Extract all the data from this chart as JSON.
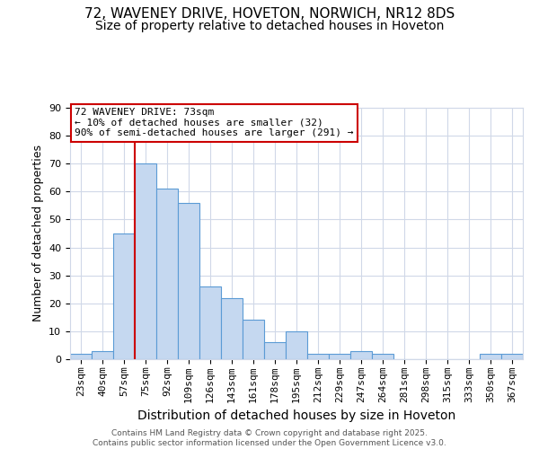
{
  "title1": "72, WAVENEY DRIVE, HOVETON, NORWICH, NR12 8DS",
  "title2": "Size of property relative to detached houses in Hoveton",
  "xlabel": "Distribution of detached houses by size in Hoveton",
  "ylabel": "Number of detached properties",
  "categories": [
    "23sqm",
    "40sqm",
    "57sqm",
    "75sqm",
    "92sqm",
    "109sqm",
    "126sqm",
    "143sqm",
    "161sqm",
    "178sqm",
    "195sqm",
    "212sqm",
    "229sqm",
    "247sqm",
    "264sqm",
    "281sqm",
    "298sqm",
    "315sqm",
    "333sqm",
    "350sqm",
    "367sqm"
  ],
  "values": [
    2,
    3,
    45,
    70,
    61,
    56,
    26,
    22,
    14,
    6,
    10,
    2,
    2,
    3,
    2,
    0,
    0,
    0,
    0,
    2,
    2
  ],
  "bar_color": "#c5d8f0",
  "bar_edge_color": "#5b9bd5",
  "bar_width": 1.0,
  "vline_x": 2.5,
  "vline_color": "#cc0000",
  "annotation_title": "72 WAVENEY DRIVE: 73sqm",
  "annotation_line1": "← 10% of detached houses are smaller (32)",
  "annotation_line2": "90% of semi-detached houses are larger (291) →",
  "annotation_box_color": "#ffffff",
  "annotation_box_edge_color": "#cc0000",
  "ylim": [
    0,
    90
  ],
  "yticks": [
    0,
    10,
    20,
    30,
    40,
    50,
    60,
    70,
    80,
    90
  ],
  "footer": "Contains HM Land Registry data © Crown copyright and database right 2025.\nContains public sector information licensed under the Open Government Licence v3.0.",
  "bg_color": "#ffffff",
  "grid_color": "#d0d8e8",
  "title_fontsize": 11,
  "subtitle_fontsize": 10,
  "xlabel_fontsize": 10,
  "ylabel_fontsize": 9,
  "tick_fontsize": 8,
  "annotation_fontsize": 8,
  "footer_fontsize": 6.5
}
